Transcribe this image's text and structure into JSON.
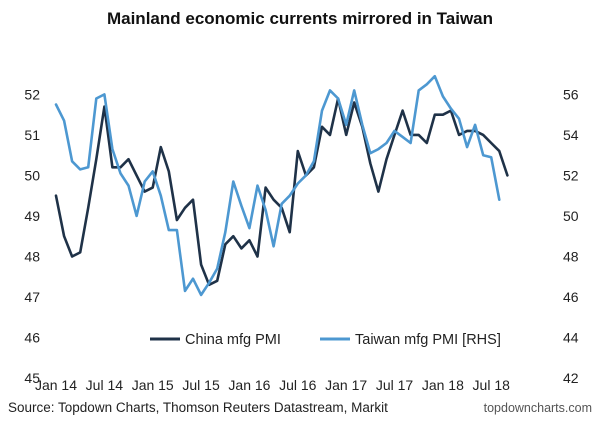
{
  "chart_data": {
    "type": "line",
    "title": "Mainland economic currents mirrored in Taiwan",
    "x_tick_labels": [
      "Jan 14",
      "Jul 14",
      "Jan 15",
      "Jul 15",
      "Jan 16",
      "Jul 16",
      "Jan 17",
      "Jul 17",
      "Jan 18",
      "Jul 18"
    ],
    "x_start": "Jan 2014",
    "y_left": {
      "ticks": [
        45,
        46,
        47,
        48,
        49,
        50,
        51,
        52
      ],
      "ylim": [
        45,
        52.8
      ]
    },
    "y_right": {
      "ticks": [
        42,
        44,
        46,
        48,
        50,
        52,
        54,
        56
      ],
      "ylim": [
        42,
        57.6
      ]
    },
    "grid": false,
    "legend_placement": "bottom-center",
    "series": [
      {
        "name": "China mfg PMI",
        "axis": "left",
        "color": "#1f3248",
        "values": [
          49.5,
          48.5,
          48.0,
          48.1,
          49.2,
          50.4,
          51.7,
          50.2,
          50.2,
          50.4,
          50.0,
          49.6,
          49.7,
          50.7,
          50.1,
          48.9,
          49.2,
          49.4,
          47.8,
          47.3,
          47.4,
          48.3,
          48.5,
          48.2,
          48.4,
          48.0,
          49.7,
          49.4,
          49.2,
          48.6,
          50.6,
          50.0,
          50.2,
          51.2,
          51.0,
          51.9,
          51.0,
          51.8,
          51.2,
          50.3,
          49.6,
          50.4,
          51.0,
          51.6,
          51.0,
          51.0,
          50.8,
          51.5,
          51.5,
          51.6,
          51.0,
          51.1,
          51.1,
          51.0,
          50.8,
          50.6,
          50.0
        ]
      },
      {
        "name": "Taiwan mfg PMI [RHS]",
        "axis": "right",
        "color": "#4d98d1",
        "values": [
          55.5,
          54.7,
          52.7,
          52.3,
          52.4,
          55.8,
          56.0,
          53.3,
          52.1,
          51.5,
          50.0,
          51.7,
          52.2,
          51.0,
          49.3,
          49.3,
          46.3,
          46.9,
          46.1,
          46.7,
          47.4,
          49.2,
          51.7,
          50.5,
          49.4,
          51.5,
          50.3,
          48.5,
          50.6,
          51.0,
          51.6,
          52.0,
          52.7,
          55.2,
          56.2,
          55.8,
          54.5,
          56.2,
          54.5,
          53.1,
          53.3,
          53.6,
          54.2,
          53.9,
          53.6,
          56.2,
          56.5,
          56.9,
          55.9,
          55.3,
          54.8,
          53.4,
          54.5,
          53.0,
          52.9,
          50.8
        ]
      }
    ]
  },
  "source": "Source: Topdown Charts, Thomson Reuters Datastream, Markit",
  "credit": "topdowncharts.com"
}
